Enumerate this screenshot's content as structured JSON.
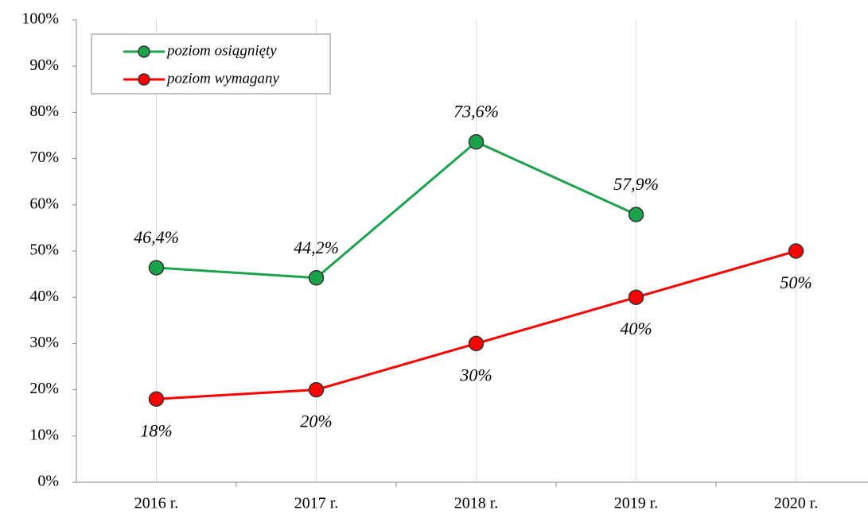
{
  "chart_data": {
    "type": "line",
    "categories": [
      "2016 r.",
      "2017 r.",
      "2018 r.",
      "2019 r.",
      "2020 r."
    ],
    "series": [
      {
        "name": "poziom osiągnięty",
        "color": "#1aa34a",
        "values": [
          46.4,
          44.2,
          73.6,
          57.9,
          null
        ],
        "value_labels": [
          "46,4%",
          "44,2%",
          "73,6%",
          "57,9%",
          null
        ]
      },
      {
        "name": "poziom wymagany",
        "color": "#ff0000",
        "values": [
          18,
          20,
          30,
          40,
          50
        ],
        "value_labels": [
          "18%",
          "20%",
          "30%",
          "40%",
          "50%"
        ]
      }
    ],
    "ylim": [
      0,
      100
    ],
    "yticks": [
      {
        "value": 0,
        "label": "0%"
      },
      {
        "value": 10,
        "label": "10%"
      },
      {
        "value": 20,
        "label": "20%"
      },
      {
        "value": 30,
        "label": "30%"
      },
      {
        "value": 40,
        "label": "40%"
      },
      {
        "value": 50,
        "label": "50%"
      },
      {
        "value": 60,
        "label": "60%"
      },
      {
        "value": 70,
        "label": "70%"
      },
      {
        "value": 80,
        "label": "80%"
      },
      {
        "value": 90,
        "label": "90%"
      },
      {
        "value": 100,
        "label": "100%"
      }
    ],
    "grid": true,
    "legend": "upper left"
  }
}
